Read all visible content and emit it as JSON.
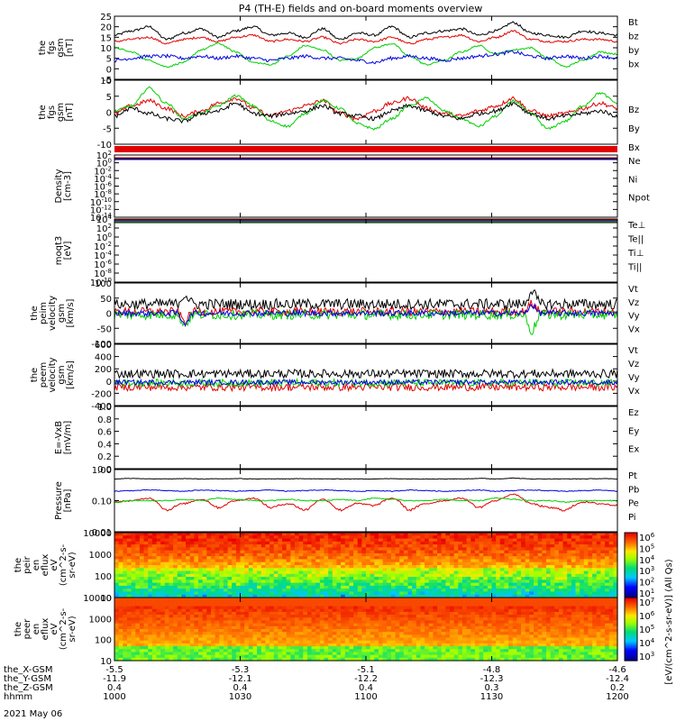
{
  "title": "P4 (TH-E) fields and on-board moments overview",
  "colors": {
    "black": "#000000",
    "red": "#e00000",
    "green": "#00d000",
    "blue": "#0000e0",
    "yellow": "#d8d800",
    "orange": "#ff8800"
  },
  "chart_data": [
    {
      "type": "line",
      "ylabel": [
        "the",
        "fgs",
        "gsm",
        "[nT]"
      ],
      "ylim": [
        -5,
        25
      ],
      "ticks": [
        25,
        20,
        15,
        10,
        5,
        0,
        -5
      ],
      "series": [
        {
          "name": "Bt",
          "color": "black",
          "base": [
            16,
            18,
            20,
            14,
            17,
            19,
            15,
            18,
            20,
            16,
            17,
            15,
            19,
            14,
            17,
            16,
            20,
            15,
            17,
            18,
            19,
            16,
            18,
            22,
            17,
            16,
            15,
            18,
            17,
            16
          ],
          "noise": 0.6
        },
        {
          "name": "bz",
          "color": "red",
          "base": [
            13,
            14,
            15,
            12,
            14,
            15,
            13,
            15,
            16,
            13,
            14,
            13,
            15,
            12,
            14,
            13,
            15,
            12,
            14,
            15,
            16,
            13,
            15,
            18,
            14,
            13,
            13,
            14,
            14,
            13
          ],
          "noise": 0.5
        },
        {
          "name": "by",
          "color": "green",
          "base": [
            10,
            8,
            4,
            1,
            3,
            9,
            12,
            8,
            3,
            2,
            6,
            11,
            9,
            4,
            5,
            10,
            12,
            6,
            2,
            4,
            8,
            11,
            7,
            9,
            10,
            5,
            1,
            4,
            8,
            7
          ],
          "noise": 0.4
        },
        {
          "name": "bx",
          "color": "blue",
          "base": [
            4,
            5,
            6,
            6,
            5,
            6,
            5,
            6,
            5,
            4,
            5,
            6,
            5,
            5,
            4,
            3,
            5,
            6,
            5,
            4,
            5,
            6,
            7,
            8,
            6,
            5,
            6,
            5,
            6,
            5
          ],
          "noise": 0.8
        }
      ]
    },
    {
      "type": "line",
      "ylabel": [
        "the",
        "fgs",
        "gsm",
        "[nT]"
      ],
      "ylim": [
        -15,
        10
      ],
      "ticks": [
        10,
        5,
        0,
        -5,
        -10
      ],
      "series": [
        {
          "name": "Bz",
          "color": "red",
          "base": [
            -3,
            0,
            2,
            -1,
            -4,
            -2,
            1,
            3,
            -1,
            -4,
            -2,
            0,
            2,
            -3,
            -5,
            -2,
            1,
            3,
            -1,
            -3,
            -4,
            -2,
            0,
            3,
            -2,
            -4,
            -3,
            -1,
            1,
            -1
          ],
          "noise": 0.8
        },
        {
          "name": "By",
          "color": "green",
          "base": [
            -2,
            0,
            7,
            1,
            -5,
            -3,
            0,
            4,
            0,
            -6,
            -8,
            -3,
            2,
            -1,
            -7,
            -9,
            -5,
            0,
            3,
            -2,
            -5,
            -8,
            -4,
            2,
            -3,
            -9,
            -6,
            0,
            5,
            1
          ],
          "noise": 0.5
        },
        {
          "name": "Bx",
          "color": "black",
          "base": [
            -4,
            -1,
            -3,
            -5,
            -6,
            -3,
            -2,
            1,
            -3,
            -4,
            -3,
            -2,
            0,
            -3,
            -4,
            -5,
            -2,
            0,
            -2,
            -4,
            -5,
            -3,
            -2,
            1,
            -3,
            -5,
            -4,
            -3,
            -2,
            -4
          ],
          "noise": 0.8
        }
      ]
    },
    {
      "type": "line",
      "ylabel": [
        "Density",
        "[cm-3]"
      ],
      "ylim": [
        -14,
        2
      ],
      "log": true,
      "ticks": [
        "10^2",
        "10^0",
        "10^-2",
        "10^-4",
        "10^-6",
        "10^-8",
        "10^-10",
        "10^-12",
        "10^-14"
      ],
      "series": [
        {
          "name": "Ne",
          "color": "red"
        },
        {
          "name": "Ni",
          "color": "black"
        },
        {
          "name": "Npot",
          "color": "blue"
        }
      ]
    },
    {
      "type": "line",
      "ylabel": [
        "moqt3",
        "[eV]"
      ],
      "ylim": [
        -10,
        4
      ],
      "log": true,
      "ticks": [
        "10^4",
        "10^2",
        "10^0",
        "10^-2",
        "10^-4",
        "10^-6",
        "10^-8",
        "10^-10"
      ],
      "series": [
        {
          "name": "Te⊥",
          "color": "red"
        },
        {
          "name": "Te||",
          "color": "black"
        },
        {
          "name": "Ti⊥",
          "color": "blue"
        },
        {
          "name": "Ti||",
          "color": "green"
        }
      ]
    },
    {
      "type": "line",
      "ylabel": [
        "the",
        "peim",
        "velocity",
        "gsm",
        "[km/s]"
      ],
      "ylim": [
        -100,
        100
      ],
      "ticks": [
        100,
        50,
        0,
        -50,
        -100
      ],
      "series": [
        {
          "name": "Vt",
          "color": "black",
          "level": 30,
          "noise": 18
        },
        {
          "name": "Vz",
          "color": "red",
          "level": 5,
          "noise": 14
        },
        {
          "name": "Vy",
          "color": "green",
          "level": -5,
          "noise": 16
        },
        {
          "name": "Vx",
          "color": "blue",
          "level": 0,
          "noise": 10
        }
      ]
    },
    {
      "type": "line",
      "ylabel": [
        "the",
        "peem",
        "velocity",
        "gsm",
        "[km/s]"
      ],
      "ylim": [
        -400,
        600
      ],
      "ticks": [
        600,
        400,
        200,
        0,
        -200,
        -400
      ],
      "series": [
        {
          "name": "Vt",
          "color": "black",
          "level": 120,
          "noise": 70
        },
        {
          "name": "Vz",
          "color": "red",
          "level": -100,
          "noise": 60
        },
        {
          "name": "Vy",
          "color": "green",
          "level": -30,
          "noise": 60
        },
        {
          "name": "Vx",
          "color": "blue",
          "level": -20,
          "noise": 40
        }
      ]
    },
    {
      "type": "line",
      "ylabel": [
        "E=-VxB",
        "[mV/m]"
      ],
      "ylim": [
        0,
        1
      ],
      "ticks": [
        "1.0",
        "0.8",
        "0.6",
        "0.4",
        "0.2",
        "0.0"
      ],
      "series": [
        {
          "name": "Ez",
          "color": "red"
        },
        {
          "name": "Ey",
          "color": "green"
        },
        {
          "name": "Ex",
          "color": "blue"
        }
      ]
    },
    {
      "type": "line",
      "ylabel": [
        "Pressure",
        "[nPa]"
      ],
      "ylim": [
        0.01,
        1
      ],
      "log": true,
      "ticks": [
        "1.00",
        "0.10",
        "0.01"
      ],
      "series": [
        {
          "name": "Pt",
          "color": "black",
          "base": [
            0.5,
            0.52,
            0.5,
            0.5,
            0.51,
            0.5,
            0.5,
            0.51,
            0.5,
            0.5,
            0.5,
            0.51,
            0.5,
            0.5,
            0.5,
            0.5,
            0.51,
            0.5,
            0.5,
            0.5,
            0.5,
            0.52,
            0.5,
            0.53,
            0.5,
            0.5,
            0.5,
            0.5,
            0.51,
            0.5
          ],
          "noise": 0.01
        },
        {
          "name": "Pb",
          "color": "red",
          "base": [
            0.09,
            0.1,
            0.12,
            0.05,
            0.08,
            0.11,
            0.06,
            0.1,
            0.12,
            0.06,
            0.08,
            0.05,
            0.11,
            0.05,
            0.08,
            0.07,
            0.12,
            0.05,
            0.08,
            0.1,
            0.12,
            0.06,
            0.1,
            0.16,
            0.08,
            0.06,
            0.05,
            0.09,
            0.08,
            0.07
          ],
          "noise": 0.005
        },
        {
          "name": "Pe",
          "color": "green",
          "base": [
            0.09,
            0.1,
            0.1,
            0.1,
            0.11,
            0.1,
            0.12,
            0.11,
            0.1,
            0.1,
            0.11,
            0.1,
            0.1,
            0.11,
            0.1,
            0.12,
            0.11,
            0.1,
            0.1,
            0.11,
            0.1,
            0.1,
            0.12,
            0.11,
            0.1,
            0.1,
            0.09,
            0.1,
            0.1,
            0.1
          ],
          "noise": 0.004
        },
        {
          "name": "Pi",
          "color": "blue",
          "base": [
            0.2,
            0.21,
            0.22,
            0.21,
            0.2,
            0.22,
            0.21,
            0.2,
            0.21,
            0.22,
            0.2,
            0.21,
            0.22,
            0.21,
            0.2,
            0.21,
            0.2,
            0.22,
            0.21,
            0.2,
            0.21,
            0.22,
            0.2,
            0.21,
            0.22,
            0.21,
            0.2,
            0.21,
            0.22,
            0.2
          ],
          "noise": 0.006
        }
      ]
    },
    {
      "type": "heatmap",
      "ylabel": [
        "the",
        "peir",
        "en",
        "eflux",
        "eV",
        "(cm^2-s-",
        "sr-eV)"
      ],
      "ylim": [
        5,
        30000
      ],
      "log": true,
      "ticks": [
        "10000",
        "1000",
        "100",
        "10"
      ],
      "colorbar": {
        "min_exp": 1,
        "max_exp": 6,
        "ticks": [
          "10^6",
          "10^5",
          "10^4",
          "10^3",
          "10^2",
          "10^1"
        ]
      }
    },
    {
      "type": "heatmap",
      "ylabel": [
        "the",
        "peer",
        "en",
        "eflux",
        "eV",
        "(cm^2-s-",
        "sr-eV)"
      ],
      "ylim": [
        5,
        30000
      ],
      "log": true,
      "ticks": [
        "10000",
        "1000",
        "100",
        "10"
      ],
      "colorbar": {
        "min_exp": 3,
        "max_exp": 7,
        "ticks": [
          "10^7",
          "10^6",
          "10^5",
          "10^4",
          "10^3"
        ]
      }
    }
  ],
  "colorbar_label": "[eV/(cm^2-s-sr-eV)] (All Qs)",
  "xaxis": {
    "rows": [
      {
        "label": "the_X-GSM",
        "values": [
          "-5.5",
          "-5.3",
          "-5.1",
          "-4.8",
          "-4.6"
        ]
      },
      {
        "label": "the_Y-GSM",
        "values": [
          "-11.9",
          "-12.1",
          "-12.2",
          "-12.3",
          "-12.4"
        ]
      },
      {
        "label": "the_Z-GSM",
        "values": [
          "0.4",
          "0.4",
          "0.4",
          "0.3",
          "0.2"
        ]
      },
      {
        "label": "hhmm",
        "values": [
          "1000",
          "1030",
          "1100",
          "1130",
          "1200"
        ]
      }
    ],
    "date": "2021 May 06"
  }
}
